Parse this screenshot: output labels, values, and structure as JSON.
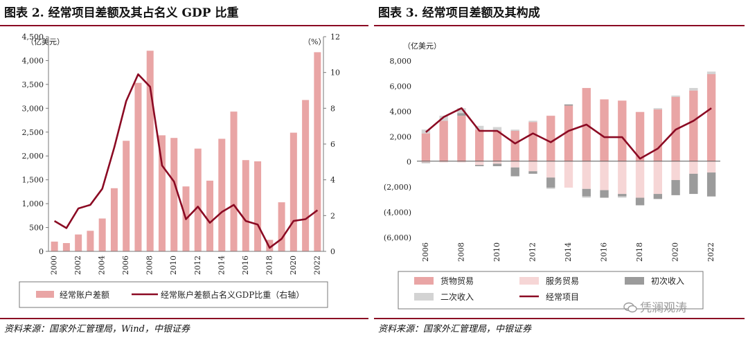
{
  "colors": {
    "accent": "#8b0a23",
    "bar_pink": "#e9a5a5",
    "bar_light": "#f6d6d6",
    "bar_dark": "#9b9b9b",
    "bar_gray": "#d3d3d3",
    "line": "#8b0a23",
    "negative_tick": "#d00000"
  },
  "left": {
    "title": "图表 2. 经常项目差额及其占名义 GDP 比重",
    "source": "资料来源：国家外汇管理局，Wind，中银证券",
    "left_unit": "（亿美元）",
    "right_unit": "（%）",
    "legend": [
      "经常账户差额",
      "经常账户差额占名义GDP比重（右轴）"
    ]
  },
  "right": {
    "title": "图表 3. 经常项目差额及其构成",
    "source": "资料来源：国家外汇管理局，中银证券",
    "unit": "（亿美元）",
    "legend": [
      "货物贸易",
      "服务贸易",
      "初次收入",
      "二次收入",
      "经常项目"
    ]
  },
  "watermark": "凭澜观涛",
  "chart_data": [
    {
      "type": "bar",
      "title": "图表 2. 经常项目差额及其占名义 GDP 比重",
      "x": [
        2000,
        2001,
        2002,
        2003,
        2004,
        2005,
        2006,
        2007,
        2008,
        2009,
        2010,
        2011,
        2012,
        2013,
        2014,
        2015,
        2016,
        2017,
        2018,
        2019,
        2020,
        2021,
        2022
      ],
      "x_tick_labels": [
        "2000",
        "2002",
        "2004",
        "2006",
        "2008",
        "2010",
        "2012",
        "2014",
        "2016",
        "2018",
        "2020",
        "2022"
      ],
      "series": [
        {
          "name": "经常账户差额",
          "kind": "bar",
          "axis": "left",
          "values": [
            205,
            174,
            354,
            431,
            689,
            1324,
            2318,
            3532,
            4206,
            2433,
            2378,
            1361,
            2154,
            1482,
            2360,
            2930,
            1913,
            1887,
            241,
            1029,
            2488,
            3173,
            4175
          ]
        },
        {
          "name": "经常账户差额占名义GDP比重（右轴）",
          "kind": "line",
          "axis": "right",
          "values": [
            1.7,
            1.3,
            2.4,
            2.6,
            3.5,
            5.8,
            8.4,
            9.9,
            9.2,
            4.8,
            3.9,
            1.8,
            2.5,
            1.6,
            2.2,
            2.6,
            1.7,
            1.5,
            0.2,
            0.7,
            1.7,
            1.8,
            2.3
          ]
        }
      ],
      "ylim_left": [
        0,
        4500
      ],
      "yticks_left": [
        0,
        500,
        1000,
        1500,
        2000,
        2500,
        3000,
        3500,
        4000,
        4500
      ],
      "ytick_labels_left": [
        "0",
        "500",
        "1,000",
        "1,500",
        "2,000",
        "2,500",
        "3,000",
        "3,500",
        "4,000",
        "4,500"
      ],
      "ylim_right": [
        0,
        12
      ],
      "yticks_right": [
        0,
        2,
        4,
        6,
        8,
        10,
        12
      ],
      "ytick_labels_right": [
        "0",
        "2",
        "4",
        "6",
        "8",
        "10",
        "12"
      ],
      "ylabel_left": "（亿美元）",
      "ylabel_right": "（%）"
    },
    {
      "type": "bar",
      "stacked": true,
      "title": "图表 3. 经常项目差额及其构成",
      "x": [
        2006,
        2007,
        2008,
        2009,
        2010,
        2011,
        2012,
        2013,
        2014,
        2015,
        2016,
        2017,
        2018,
        2019,
        2020,
        2021,
        2022
      ],
      "x_tick_labels": [
        "2006",
        "2008",
        "2010",
        "2012",
        "2014",
        "2016",
        "2018",
        "2020",
        "2022"
      ],
      "series": [
        {
          "name": "货物贸易",
          "kind": "bar",
          "values": [
            2200,
            3200,
            3600,
            2500,
            2400,
            2400,
            3100,
            3600,
            4400,
            5800,
            4900,
            4800,
            3900,
            4100,
            5100,
            5600,
            6900
          ]
        },
        {
          "name": "服务贸易",
          "kind": "bar",
          "values": [
            -100,
            -100,
            -100,
            -300,
            -200,
            -500,
            -800,
            -1300,
            -2100,
            -2200,
            -2300,
            -2600,
            -2900,
            -2600,
            -1500,
            -1000,
            -900
          ]
        },
        {
          "name": "初次收入",
          "kind": "bar",
          "values": [
            -50,
            0,
            200,
            -100,
            -200,
            -700,
            -200,
            -800,
            100,
            -600,
            -600,
            -200,
            -600,
            -400,
            -1200,
            -1600,
            -1900
          ]
        },
        {
          "name": "二次收入",
          "kind": "bar",
          "values": [
            300,
            400,
            400,
            300,
            300,
            100,
            100,
            -100,
            0,
            -100,
            0,
            -100,
            0,
            100,
            100,
            200,
            200
          ]
        },
        {
          "name": "经常项目",
          "kind": "line",
          "values": [
            2300,
            3500,
            4200,
            2400,
            2400,
            1400,
            2200,
            1500,
            2400,
            2900,
            1900,
            1900,
            200,
            1000,
            2500,
            3200,
            4200
          ]
        }
      ],
      "ylim": [
        -6000,
        8000
      ],
      "yticks": [
        -6000,
        -4000,
        -2000,
        0,
        2000,
        4000,
        6000,
        8000
      ],
      "ytick_labels": [
        "(6,000)",
        "(4,000)",
        "(2,000)",
        "0",
        "2,000",
        "4,000",
        "6,000",
        "8,000"
      ],
      "ylabel": "（亿美元）"
    }
  ]
}
